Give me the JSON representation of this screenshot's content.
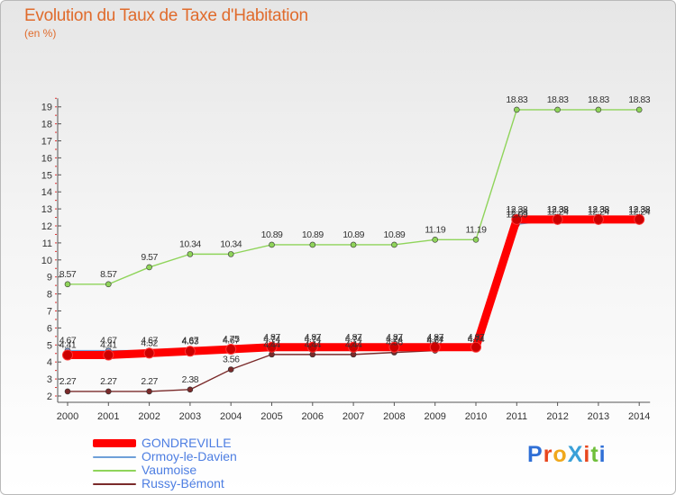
{
  "chart_data": {
    "type": "line",
    "title": "Evolution du Taux de Taxe d'Habitation",
    "subtitle": "(en %)",
    "x": [
      "2000",
      "2001",
      "2002",
      "2003",
      "2004",
      "2005",
      "2006",
      "2007",
      "2008",
      "2009",
      "2010",
      "2011",
      "2012",
      "2013",
      "2014"
    ],
    "ylim": [
      2,
      19.5
    ],
    "yticks": [
      2,
      3,
      4,
      5,
      6,
      7,
      8,
      9,
      10,
      11,
      12,
      13,
      14,
      15,
      16,
      17,
      18,
      19
    ],
    "grid": false,
    "legend_position": "bottom-left",
    "series": [
      {
        "name": "GONDREVILLE",
        "color": "#ff0000",
        "values": [
          4.41,
          4.41,
          4.52,
          4.63,
          4.75,
          4.87,
          4.87,
          4.87,
          4.87,
          4.87,
          4.87,
          12.38,
          12.38,
          12.38,
          12.38
        ],
        "labels": [
          "4.41",
          "4.41",
          "4.52",
          "4.63",
          "4.75",
          "4.87",
          "4.87",
          "4.87",
          "4.87",
          "4.87",
          "4.87",
          "12.38",
          "12.38",
          "12.38",
          "12.38"
        ]
      },
      {
        "name": "Ormoy-le-Davien",
        "color": "#6e9fd8",
        "values": [
          4.67,
          4.67,
          4.67,
          4.67,
          4.67,
          4.74,
          4.74,
          4.74,
          4.74,
          4.74,
          4.74,
          12.09,
          12.38,
          12.38,
          12.38
        ],
        "labels": [
          "4.67",
          "4.67",
          "4.67",
          "4.67",
          "4.67",
          "4.74",
          "4.74",
          "4.74",
          "4.74",
          "4.74",
          "4.74",
          "12.09",
          "12.38",
          "12.38",
          "12.38"
        ]
      },
      {
        "name": "Vaumoise",
        "color": "#8fd45a",
        "values": [
          8.57,
          8.57,
          9.57,
          10.34,
          10.34,
          10.89,
          10.89,
          10.89,
          10.89,
          11.19,
          11.19,
          18.83,
          18.83,
          18.83,
          18.83
        ],
        "labels": [
          "8.57",
          "8.57",
          "9.57",
          "10.34",
          "10.34",
          "10.89",
          "10.89",
          "10.89",
          "10.89",
          "11.19",
          "11.19",
          "18.83",
          "18.83",
          "18.83",
          "18.83"
        ]
      },
      {
        "name": "Russy-Bémont",
        "color": "#7a2a2a",
        "values": [
          2.27,
          2.27,
          2.27,
          2.38,
          3.56,
          4.44,
          4.44,
          4.44,
          4.56,
          4.67,
          4.74,
          12.24,
          12.24,
          12.24,
          12.24
        ],
        "labels": [
          "2.27",
          "2.27",
          "2.27",
          "2.38",
          "3.56",
          "4.44",
          "4.44",
          "4.44",
          "4.56",
          "4.67",
          "4.74",
          "12.24",
          "12.24",
          "12.24",
          "12.24"
        ]
      }
    ]
  },
  "logo": {
    "text": "ProXiti"
  }
}
